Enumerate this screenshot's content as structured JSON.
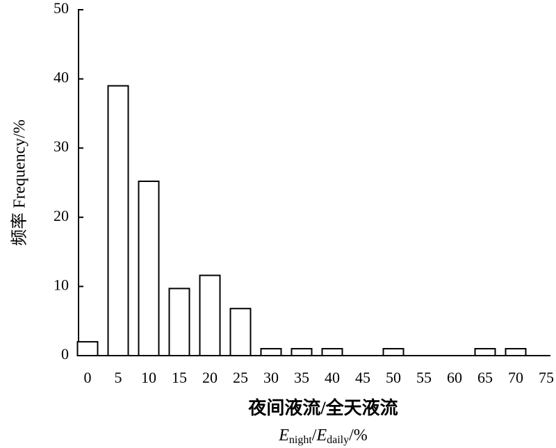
{
  "chart_data": {
    "type": "bar",
    "categories": [
      "0",
      "5",
      "10",
      "15",
      "20",
      "25",
      "30",
      "35",
      "40",
      "45",
      "50",
      "55",
      "60",
      "65",
      "70",
      "75"
    ],
    "values": [
      2,
      39,
      25.2,
      9.7,
      11.6,
      6.8,
      1,
      1,
      1,
      0,
      1,
      0,
      0,
      1,
      1,
      0
    ],
    "color": "#ffffff",
    "edgecolor": "#000000",
    "ylim": [
      0,
      50
    ],
    "yticks": [
      0,
      10,
      20,
      30,
      40,
      50
    ],
    "grid": false,
    "ylabel": "频率 Frequency/%",
    "xlabel": "夜间液流/全天液流",
    "xlabel_formula": [
      "E",
      "night",
      "/",
      "E",
      "daily",
      "/%"
    ]
  }
}
